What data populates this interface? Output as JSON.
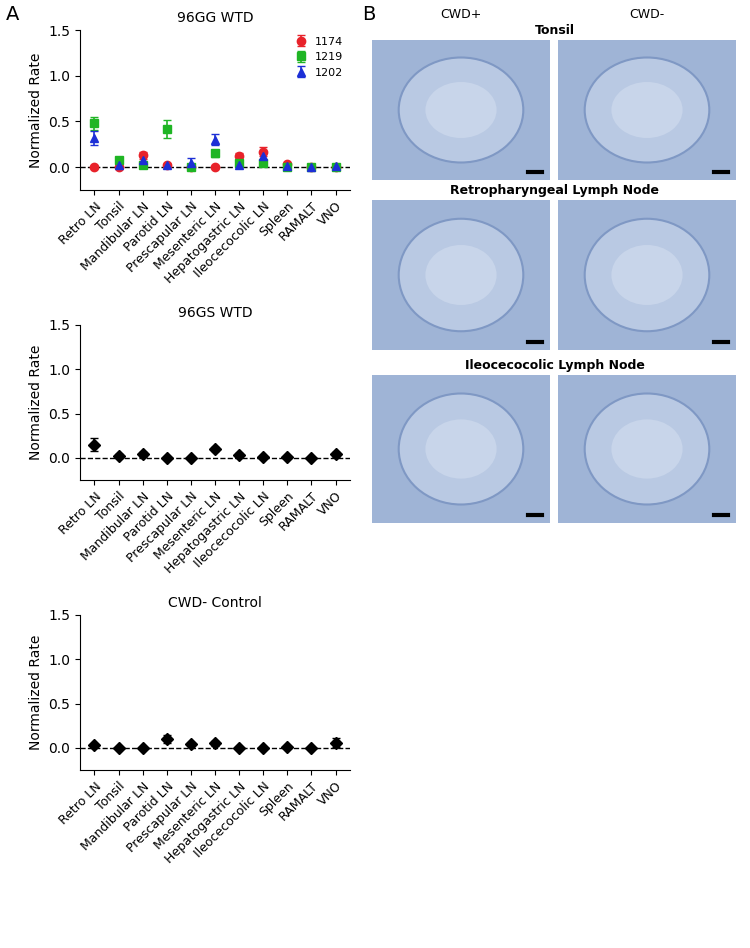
{
  "chart_data": [
    {
      "type": "scatter",
      "title": "96GG WTD",
      "y_label": "Normalized Rate",
      "categories": [
        "Retro LN",
        "Tonsil",
        "Mandibular LN",
        "Parotid LN",
        "Prescapular LN",
        "Mesenteric LN",
        "Hepatogastric LN",
        "Ileocecocolic LN",
        "Spleen",
        "RAMALT",
        "VNO"
      ],
      "ylim": [
        -0.25,
        1.5
      ],
      "yticks": [
        0.0,
        0.5,
        1.0,
        1.5
      ],
      "reference_line": 0,
      "legend": "upper right",
      "series": [
        {
          "name": "1174",
          "color": "#e8222a",
          "marker": "circle",
          "values": [
            0.0,
            0.0,
            0.13,
            0.02,
            0.0,
            0.0,
            0.12,
            0.17,
            0.03,
            0.0,
            0.0
          ],
          "errors": [
            0.01,
            0.01,
            0.04,
            0.01,
            0.0,
            0.01,
            0.04,
            0.05,
            0.01,
            0.0,
            0.01
          ]
        },
        {
          "name": "1219",
          "color": "#1fb524",
          "marker": "square",
          "values": [
            0.48,
            0.08,
            0.02,
            0.42,
            0.0,
            0.15,
            0.05,
            0.05,
            0.0,
            0.0,
            0.0
          ],
          "errors": [
            0.07,
            0.03,
            0.02,
            0.1,
            0.0,
            0.04,
            0.02,
            0.03,
            0.01,
            0.0,
            0.01
          ]
        },
        {
          "name": "1202",
          "color": "#1c2fd6",
          "marker": "triangle",
          "values": [
            0.32,
            0.02,
            0.08,
            0.02,
            0.04,
            0.3,
            0.02,
            0.12,
            0.01,
            0.0,
            0.01
          ],
          "errors": [
            0.08,
            0.02,
            0.04,
            0.01,
            0.06,
            0.06,
            0.01,
            0.04,
            0.01,
            0.0,
            0.01
          ]
        }
      ]
    },
    {
      "type": "scatter",
      "title": "96GS WTD",
      "y_label": "Normalized Rate",
      "categories": [
        "Retro LN",
        "Tonsil",
        "Mandibular LN",
        "Parotid LN",
        "Prescapular LN",
        "Mesenteric LN",
        "Hepatogastric LN",
        "Ileocecocolic LN",
        "Spleen",
        "RAMALT",
        "VNO"
      ],
      "ylim": [
        -0.25,
        1.5
      ],
      "yticks": [
        0.0,
        0.5,
        1.0,
        1.5
      ],
      "reference_line": 0,
      "color": "#000000",
      "marker": "diamond",
      "values": [
        0.15,
        0.02,
        0.04,
        0.0,
        0.0,
        0.1,
        0.03,
        0.01,
        0.01,
        0.0,
        0.04
      ],
      "errors": [
        0.07,
        0.02,
        0.03,
        0.01,
        0.01,
        0.02,
        0.02,
        0.01,
        0.01,
        0.0,
        0.03
      ]
    },
    {
      "type": "scatter",
      "title": "CWD- Control",
      "y_label": "Normalized Rate",
      "categories": [
        "Retro LN",
        "Tonsil",
        "Mandibular LN",
        "Parotid LN",
        "Prescapular LN",
        "Mesenteric LN",
        "Hepatogastric LN",
        "Ileocecocolic LN",
        "Spleen",
        "RAMALT",
        "VNO"
      ],
      "ylim": [
        -0.25,
        1.5
      ],
      "yticks": [
        0.0,
        0.5,
        1.0,
        1.5
      ],
      "reference_line": 0,
      "color": "#000000",
      "marker": "diamond",
      "values": [
        0.03,
        0.0,
        0.0,
        0.1,
        0.04,
        0.05,
        0.0,
        0.0,
        0.01,
        0.0,
        0.06
      ],
      "errors": [
        0.01,
        0.0,
        0.0,
        0.04,
        0.02,
        0.03,
        0.0,
        0.0,
        0.01,
        0.0,
        0.05
      ]
    }
  ],
  "panel_labels": [
    "A",
    "B"
  ],
  "panel_b": {
    "columns": [
      "CWD+",
      "CWD-"
    ],
    "rows": [
      "Tonsil",
      "Retropharyngeal Lymph Node",
      "Ileocecocolic Lymph Node"
    ]
  }
}
